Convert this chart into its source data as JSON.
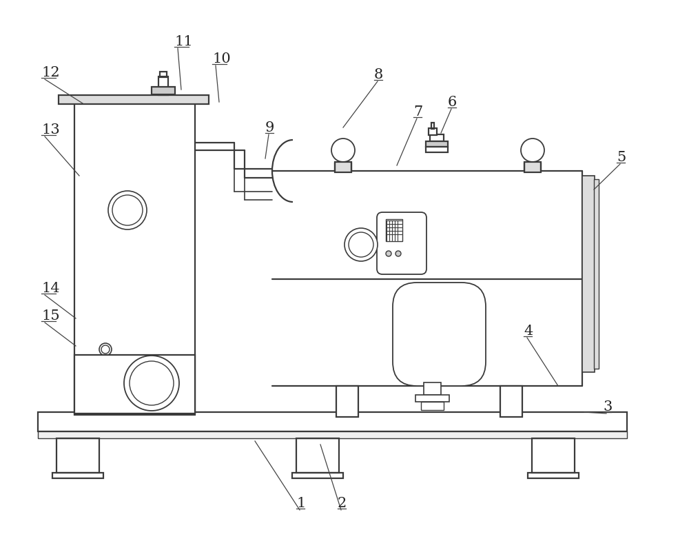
{
  "bg": "#ffffff",
  "lc": "#3a3a3a",
  "lw": 1.6,
  "lw_thin": 1.0,
  "figsize": [
    10.0,
    8.01
  ],
  "dpi": 100,
  "labels": [
    [
      "1",
      430,
      740,
      370,
      640
    ],
    [
      "2",
      490,
      740,
      465,
      645
    ],
    [
      "3",
      875,
      600,
      848,
      598
    ],
    [
      "4",
      760,
      490,
      810,
      560
    ],
    [
      "5",
      895,
      238,
      862,
      275
    ],
    [
      "6",
      650,
      158,
      640,
      193
    ],
    [
      "7",
      600,
      172,
      576,
      240
    ],
    [
      "8",
      543,
      118,
      498,
      185
    ],
    [
      "9",
      385,
      195,
      385,
      230
    ],
    [
      "10",
      308,
      95,
      318,
      148
    ],
    [
      "11",
      253,
      70,
      263,
      130
    ],
    [
      "12",
      60,
      115,
      120,
      150
    ],
    [
      "13",
      60,
      198,
      115,
      255
    ],
    [
      "14",
      60,
      428,
      110,
      462
    ],
    [
      "15",
      60,
      468,
      110,
      502
    ]
  ]
}
